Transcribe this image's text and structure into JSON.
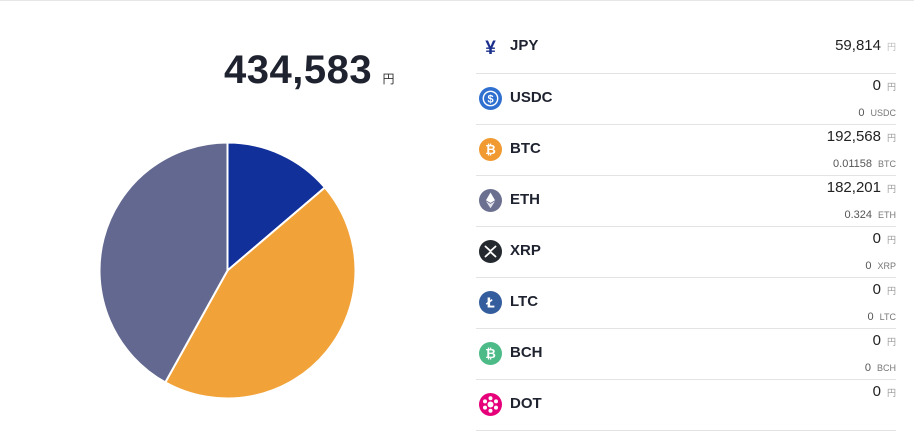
{
  "total": {
    "value": "434,583",
    "unit": "円"
  },
  "chart_data": {
    "type": "pie",
    "series": [
      {
        "values": [
          59814,
          192568,
          182201
        ]
      }
    ],
    "categories": [
      "JPY",
      "BTC",
      "ETH"
    ],
    "colors": [
      "#11309a",
      "#f1a33a",
      "#62688f"
    ]
  },
  "assets": [
    {
      "name": "JPY",
      "amount": "59,814",
      "unit": "円",
      "icon": "yen-icon"
    },
    {
      "name": "USDC",
      "amount": "0",
      "unit": "円",
      "sub_amount": "0",
      "sub_unit": "USDC",
      "icon": "usdc-icon",
      "color": "#2f6fd0"
    },
    {
      "name": "BTC",
      "amount": "192,568",
      "unit": "円",
      "sub_amount": "0.01158",
      "sub_unit": "BTC",
      "icon": "btc-icon",
      "color": "#f09a31"
    },
    {
      "name": "ETH",
      "amount": "182,201",
      "unit": "円",
      "sub_amount": "0.324",
      "sub_unit": "ETH",
      "icon": "eth-icon",
      "color": "#6c7090"
    },
    {
      "name": "XRP",
      "amount": "0",
      "unit": "円",
      "sub_amount": "0",
      "sub_unit": "XRP",
      "icon": "xrp-icon",
      "color": "#23292f"
    },
    {
      "name": "LTC",
      "amount": "0",
      "unit": "円",
      "sub_amount": "0",
      "sub_unit": "LTC",
      "icon": "ltc-icon",
      "color": "#345d9d"
    },
    {
      "name": "BCH",
      "amount": "0",
      "unit": "円",
      "sub_amount": "0",
      "sub_unit": "BCH",
      "icon": "bch-icon",
      "color": "#4cbb88"
    },
    {
      "name": "DOT",
      "amount": "0",
      "unit": "円",
      "icon": "dot-icon",
      "color": "#e6007a"
    }
  ]
}
